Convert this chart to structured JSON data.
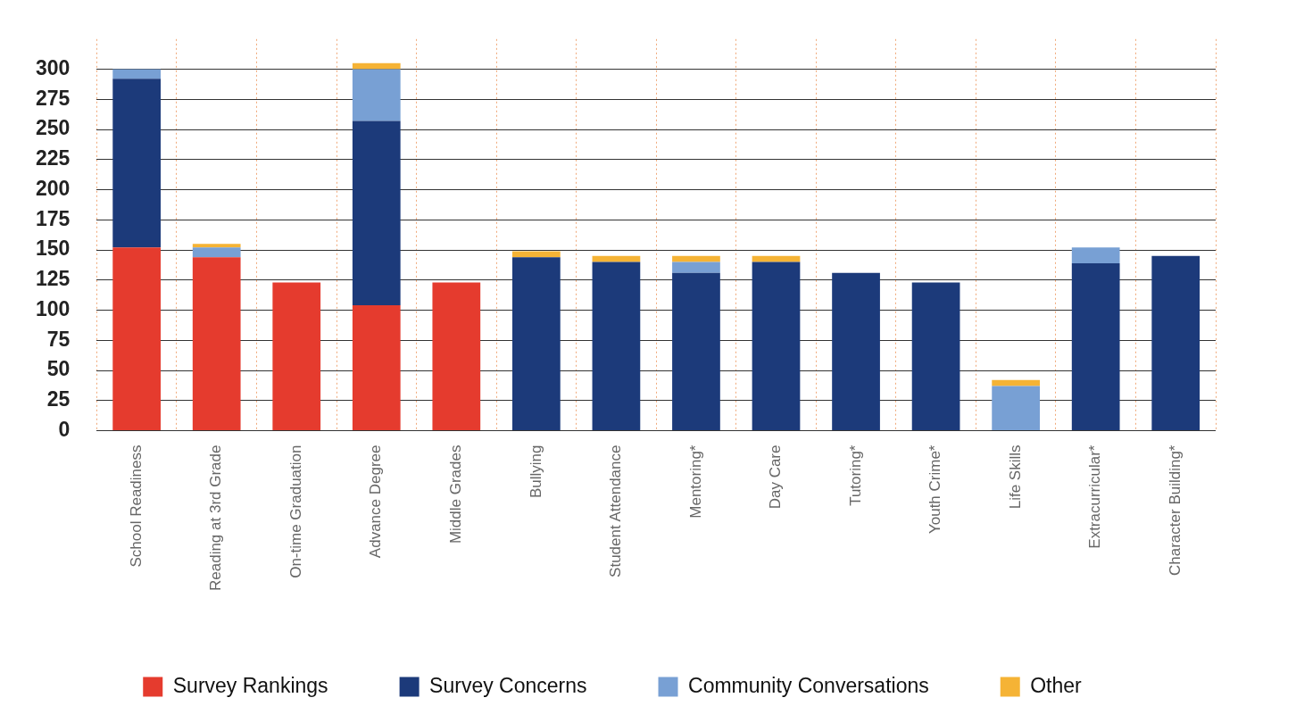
{
  "chart_data": {
    "type": "bar",
    "stacked": true,
    "categories": [
      "School Readiness",
      "Reading at 3rd Grade",
      "On-time Graduation",
      "Advance Degree",
      "Middle Grades",
      "Bullying",
      "Student Attendance",
      "Mentoring*",
      "Day Care",
      "Tutoring*",
      "Youth Crime*",
      "Life Skills",
      "Extracurricular*",
      "Character Building*"
    ],
    "series": [
      {
        "name": "Survey Rankings",
        "color": "#e53b2e",
        "values": [
          152,
          144,
          123,
          104,
          123,
          null,
          null,
          null,
          null,
          null,
          null,
          null,
          null,
          null
        ]
      },
      {
        "name": "Survey Concerns",
        "color": "#1c3a7a",
        "values": [
          140,
          null,
          null,
          153,
          null,
          144,
          140,
          131,
          140,
          131,
          123,
          null,
          139,
          145
        ]
      },
      {
        "name": "Community Conversations",
        "color": "#78a0d4",
        "values": [
          8,
          8,
          null,
          43,
          null,
          null,
          null,
          9,
          null,
          null,
          null,
          37,
          13,
          null
        ]
      },
      {
        "name": "Other",
        "color": "#f5b335",
        "values": [
          null,
          3,
          null,
          5,
          null,
          5,
          5,
          5,
          5,
          null,
          null,
          5,
          null,
          null
        ]
      }
    ],
    "ylim": [
      0,
      325
    ],
    "yticks": [
      0,
      25,
      50,
      75,
      100,
      125,
      150,
      175,
      200,
      225,
      250,
      275,
      300
    ],
    "grid": true,
    "legend": "bottom"
  }
}
